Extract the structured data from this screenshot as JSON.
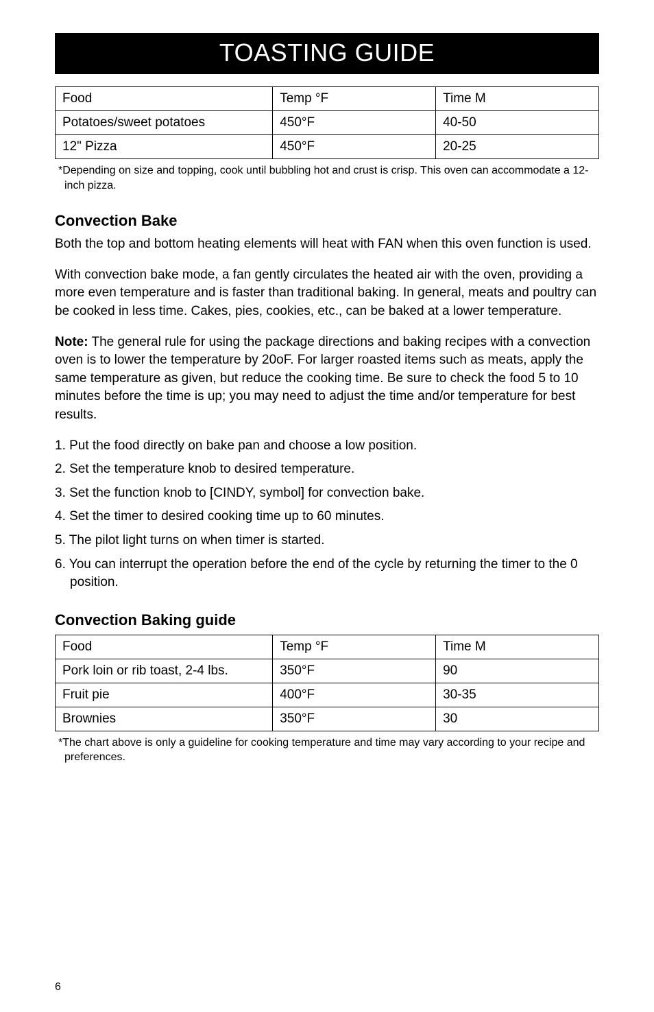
{
  "banner_title": "TOASTING GUIDE",
  "page_number": "6",
  "table1": {
    "columns": [
      "Food",
      "Temp °F",
      "Time M"
    ],
    "rows": [
      [
        "Potatoes/sweet potatoes",
        "450°F",
        "40-50"
      ],
      [
        "12\" Pizza",
        "450°F",
        "20-25"
      ]
    ],
    "footnote": "*Depending on size and topping, cook until bubbling hot and crust is crisp. This oven can accommodate a 12-inch pizza."
  },
  "section1": {
    "heading": "Convection Bake",
    "p1": "Both the top and bottom heating elements will heat with FAN when this oven function is used.",
    "p2": "With convection bake mode, a fan gently circulates the heated air with the oven, providing a more even temperature and is faster than traditional baking. In general, meats and poultry can be cooked in less time. Cakes, pies, cookies, etc., can be baked at a lower temperature.",
    "p3_label": "Note:",
    "p3_body": " The general rule for using the package directions and baking recipes with a convection oven is to lower the temperature by 20oF. For larger roasted items such as meats, apply the same temperature as given, but reduce the cooking time. Be sure to check the food 5 to 10 minutes before the time is up; you may need to adjust the time and/or temperature for best results.",
    "steps": [
      "1. Put the food directly on bake pan and choose a low position.",
      "2. Set the temperature knob to desired temperature.",
      "3. Set the function knob to [CINDY, symbol] for convection bake.",
      "4. Set the timer to desired cooking time up to 60 minutes.",
      "5. The pilot light turns on when timer is started.",
      "6. You can interrupt the operation before the end of the cycle by returning the timer to the 0 position."
    ]
  },
  "section2": {
    "heading": "Convection Baking guide"
  },
  "table2": {
    "columns": [
      "Food",
      "Temp °F",
      "Time M"
    ],
    "rows": [
      [
        "Pork loin or rib toast, 2-4 lbs.",
        "350°F",
        "90"
      ],
      [
        "Fruit pie",
        "400°F",
        "30-35"
      ],
      [
        "Brownies",
        "350°F",
        "30"
      ]
    ],
    "footnote": "*The chart above is only a guideline for cooking temperature and time may vary according to your recipe and preferences."
  }
}
